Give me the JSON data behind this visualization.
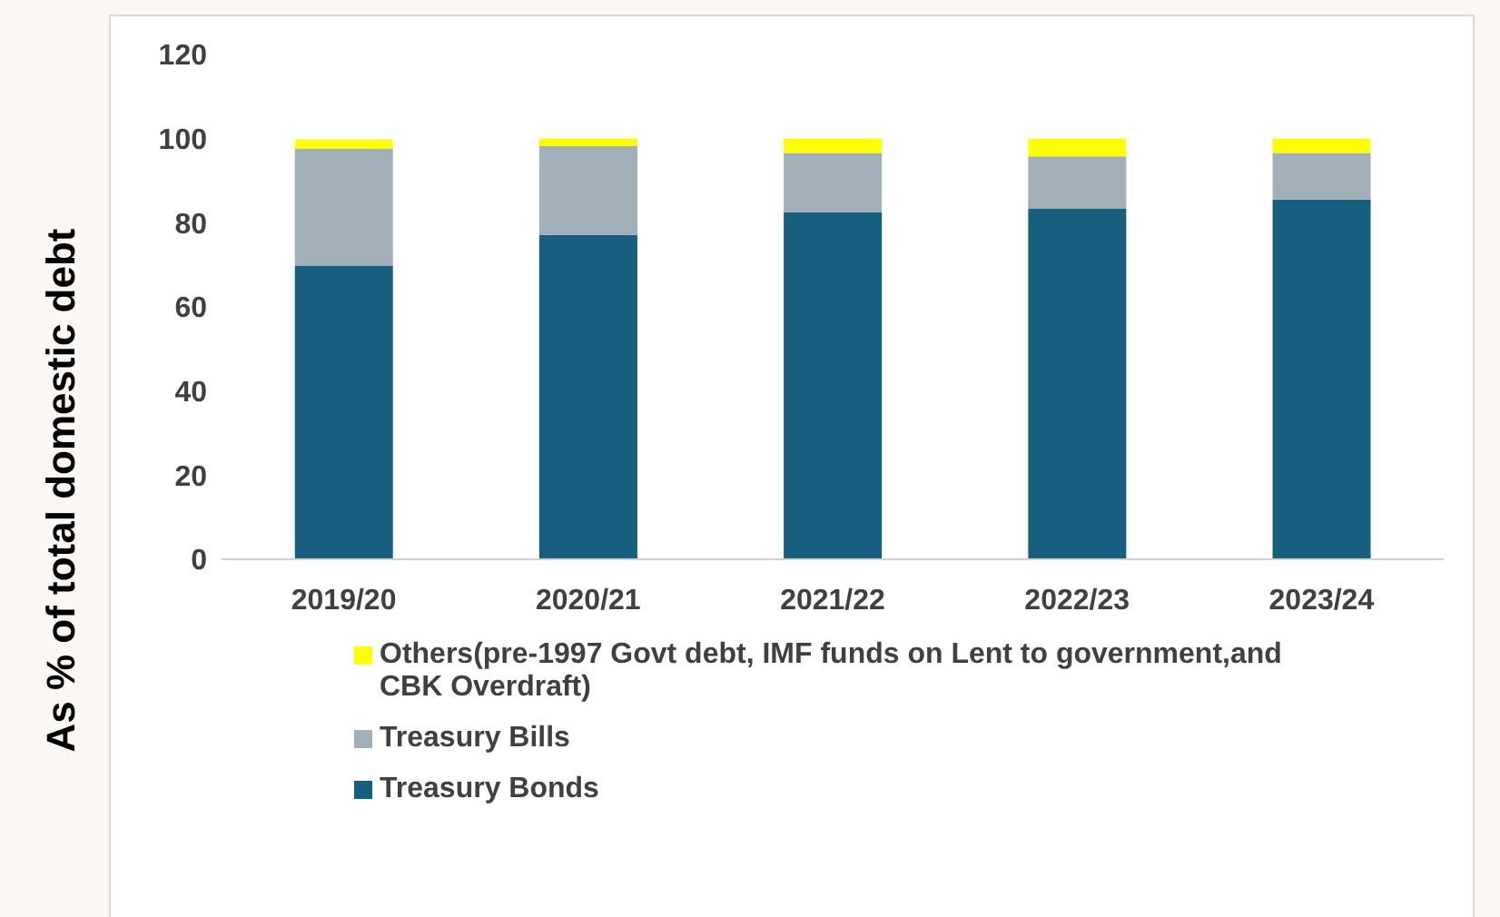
{
  "chart_data": {
    "type": "bar",
    "ylabel": "As % of total domestic debt",
    "categories": [
      "2019/20",
      "2020/21",
      "2021/22",
      "2022/23",
      "2023/24"
    ],
    "stacked": true,
    "series": [
      {
        "name": "Treasury Bonds",
        "color": "#175e7f",
        "values": [
          69.8,
          77.1,
          82.5,
          83.3,
          85.5
        ]
      },
      {
        "name": "Treasury Bills",
        "color": "#a1afb9",
        "values": [
          27.8,
          21.1,
          14.1,
          12.5,
          11.1
        ]
      },
      {
        "name": "Others(pre-1997 Govt debt, IMF funds on Lent to government,and CBK Overdraft)",
        "color": "#ffff00",
        "values": [
          2.2,
          1.8,
          3.4,
          4.2,
          3.4
        ]
      }
    ],
    "ylim": [
      0,
      120
    ],
    "yticks": [
      0,
      20,
      40,
      60,
      80,
      100,
      120
    ],
    "legend": "bottom"
  }
}
